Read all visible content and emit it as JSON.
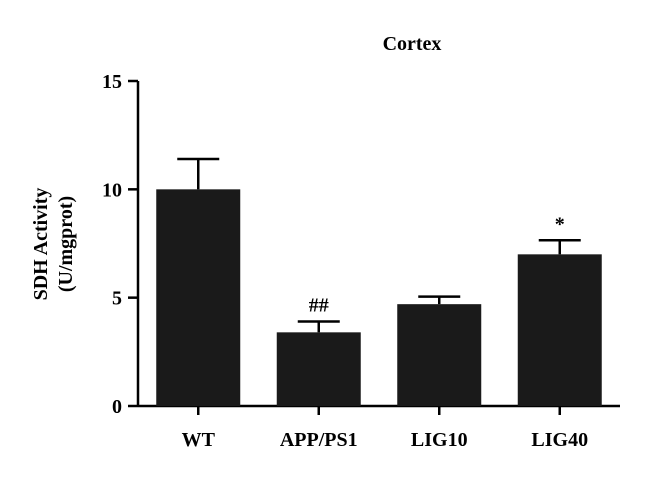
{
  "chart_data": {
    "type": "bar",
    "title": "Cortex",
    "ylabel_lines": [
      "SDH Activity",
      "(U/mgprot)"
    ],
    "xlabel": "",
    "categories": [
      "WT",
      "APP/PS1",
      "LIG10",
      "LIG40"
    ],
    "values": [
      10.0,
      3.4,
      4.7,
      7.0
    ],
    "errors": [
      1.4,
      0.5,
      0.35,
      0.65
    ],
    "annotations": [
      "",
      "##",
      "",
      "*"
    ],
    "ylim": [
      0,
      15
    ],
    "yticks": [
      0,
      5,
      10,
      15
    ],
    "ytick_labels": [
      "0",
      "5",
      "10",
      "15"
    ],
    "grid": false,
    "colors": {
      "bar": "#1a1a1a",
      "axis": "#000000"
    }
  }
}
